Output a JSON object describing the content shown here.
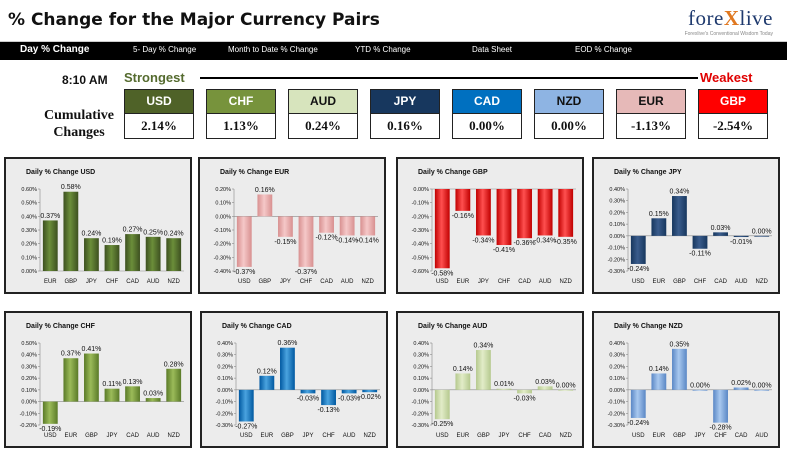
{
  "header": {
    "title": "% Change for the Major Currency Pairs",
    "logo_main": "fore",
    "logo_x": "X",
    "logo_end": "live",
    "logo_tag": "Forexlive's Conventional Wisdom Today"
  },
  "tabs": [
    {
      "label": "Day % Change"
    },
    {
      "label": "5- Day % Change"
    },
    {
      "label": "Month to Date % Change"
    },
    {
      "label": "YTD % Change"
    },
    {
      "label": "Data Sheet"
    },
    {
      "label": "EOD % Change"
    }
  ],
  "summary": {
    "time": "8:10 AM",
    "strongest_label": "Strongest",
    "weakest_label": "Weakest",
    "cumulative_label_1": "Cumulative",
    "cumulative_label_2": "Changes",
    "currencies": [
      {
        "name": "USD",
        "value": "2.14%",
        "color": "#4f6228",
        "text_color": "#ffffff"
      },
      {
        "name": "CHF",
        "value": "1.13%",
        "color": "#77933c",
        "text_color": "#ffffff"
      },
      {
        "name": "AUD",
        "value": "0.24%",
        "color": "#d7e4bd",
        "text_color": "#111111"
      },
      {
        "name": "JPY",
        "value": "0.16%",
        "color": "#17375e",
        "text_color": "#ffffff"
      },
      {
        "name": "CAD",
        "value": "0.00%",
        "color": "#0070c0",
        "text_color": "#ffffff"
      },
      {
        "name": "NZD",
        "value": "0.00%",
        "color": "#8eb4e3",
        "text_color": "#111111"
      },
      {
        "name": "EUR",
        "value": "-1.13%",
        "color": "#e6b9b8",
        "text_color": "#111111"
      },
      {
        "name": "GBP",
        "value": "-2.54%",
        "color": "#ff0000",
        "text_color": "#ffffff"
      }
    ]
  },
  "chart_data": [
    {
      "type": "bar",
      "title": "Daily % Change USD",
      "categories": [
        "EUR",
        "GBP",
        "JPY",
        "CHF",
        "CAD",
        "AUD",
        "NZD"
      ],
      "values": [
        0.37,
        0.58,
        0.24,
        0.19,
        0.27,
        0.25,
        0.24
      ],
      "labels": [
        "0.37%",
        "0.58%",
        "0.24%",
        "0.19%",
        "0.27%",
        "0.25%",
        "0.24%"
      ],
      "ylim": [
        0.0,
        0.6
      ],
      "ticks": [
        0.0,
        0.1,
        0.2,
        0.3,
        0.4,
        0.5,
        0.6
      ],
      "tick_labels": [
        "0.00%",
        "0.10%",
        "0.20%",
        "0.30%",
        "0.40%",
        "0.50%",
        "0.60%"
      ],
      "colors": {
        "light": "#6b8e3a",
        "dark": "#3d5020"
      }
    },
    {
      "type": "bar",
      "title": "Daily % Change EUR",
      "categories": [
        "USD",
        "GBP",
        "JPY",
        "CHF",
        "CAD",
        "AUD",
        "NZD"
      ],
      "values": [
        -0.37,
        0.16,
        -0.15,
        -0.37,
        -0.12,
        -0.14,
        -0.14
      ],
      "labels": [
        "-0.37%",
        "0.16%",
        "-0.15%",
        "-0.37%",
        "-0.12%",
        "-0.14%",
        "-0.14%"
      ],
      "ylim": [
        -0.4,
        0.2
      ],
      "ticks": [
        -0.4,
        -0.3,
        -0.2,
        -0.1,
        0.0,
        0.1,
        0.2
      ],
      "tick_labels": [
        "-0.40%",
        "-0.30%",
        "-0.20%",
        "-0.10%",
        "0.00%",
        "0.10%",
        "0.20%"
      ],
      "colors": {
        "light": "#f5c8c8",
        "dark": "#d89090"
      }
    },
    {
      "type": "bar",
      "title": "Daily % Change GBP",
      "categories": [
        "USD",
        "EUR",
        "JPY",
        "CHF",
        "CAD",
        "AUD",
        "NZD"
      ],
      "values": [
        -0.58,
        -0.16,
        -0.34,
        -0.41,
        -0.36,
        -0.34,
        -0.35
      ],
      "labels": [
        "-0.58%",
        "-0.16%",
        "-0.34%",
        "-0.41%",
        "-0.36%",
        "-0.34%",
        "-0.35%"
      ],
      "ylim": [
        -0.6,
        0.0
      ],
      "ticks": [
        -0.6,
        -0.5,
        -0.4,
        -0.3,
        -0.2,
        -0.1,
        0.0
      ],
      "tick_labels": [
        "-0.60%",
        "-0.50%",
        "-0.40%",
        "-0.30%",
        "-0.20%",
        "-0.10%",
        "0.00%"
      ],
      "colors": {
        "light": "#ff5050",
        "dark": "#c00000"
      }
    },
    {
      "type": "bar",
      "title": "Daily % Change JPY",
      "categories": [
        "USD",
        "EUR",
        "GBP",
        "CHF",
        "CAD",
        "AUD",
        "NZD"
      ],
      "values": [
        -0.24,
        0.15,
        0.34,
        -0.11,
        0.03,
        -0.01,
        0.0
      ],
      "labels": [
        "-0.24%",
        "0.15%",
        "0.34%",
        "-0.11%",
        "0.03%",
        "-0.01%",
        "0.00%"
      ],
      "ylim": [
        -0.3,
        0.4
      ],
      "ticks": [
        -0.3,
        -0.2,
        -0.1,
        0.0,
        0.1,
        0.2,
        0.3,
        0.4
      ],
      "tick_labels": [
        "-0.30%",
        "-0.20%",
        "-0.10%",
        "0.00%",
        "0.10%",
        "0.20%",
        "0.30%",
        "0.40%"
      ],
      "colors": {
        "light": "#3a5c8c",
        "dark": "#17375e"
      }
    },
    {
      "type": "bar",
      "title": "Daily % Change CHF",
      "categories": [
        "USD",
        "EUR",
        "GBP",
        "JPY",
        "CAD",
        "AUD",
        "NZD"
      ],
      "values": [
        -0.19,
        0.37,
        0.41,
        0.11,
        0.13,
        0.03,
        0.28
      ],
      "labels": [
        "-0.19%",
        "0.37%",
        "0.41%",
        "0.11%",
        "0.13%",
        "0.03%",
        "0.28%"
      ],
      "ylim": [
        -0.2,
        0.5
      ],
      "ticks": [
        -0.2,
        -0.1,
        0.0,
        0.1,
        0.2,
        0.3,
        0.4,
        0.5
      ],
      "tick_labels": [
        "-0.20%",
        "-0.10%",
        "0.00%",
        "0.10%",
        "0.20%",
        "0.30%",
        "0.40%",
        "0.50%"
      ],
      "colors": {
        "light": "#9bbb59",
        "dark": "#5a7a28"
      }
    },
    {
      "type": "bar",
      "title": "Daily % Change CAD",
      "categories": [
        "USD",
        "EUR",
        "GBP",
        "JPY",
        "CHF",
        "AUD",
        "NZD"
      ],
      "values": [
        -0.27,
        0.12,
        0.36,
        -0.03,
        -0.13,
        -0.03,
        -0.02
      ],
      "labels": [
        "-0.27%",
        "0.12%",
        "0.36%",
        "-0.03%",
        "-0.13%",
        "-0.03%",
        "-0.02%"
      ],
      "ylim": [
        -0.3,
        0.4
      ],
      "ticks": [
        -0.3,
        -0.2,
        -0.1,
        0.0,
        0.1,
        0.2,
        0.3,
        0.4
      ],
      "tick_labels": [
        "-0.30%",
        "-0.20%",
        "-0.10%",
        "0.00%",
        "0.10%",
        "0.20%",
        "0.30%",
        "0.40%"
      ],
      "colors": {
        "light": "#4aa3df",
        "dark": "#0058a0"
      }
    },
    {
      "type": "bar",
      "title": "Daily % Change AUD",
      "categories": [
        "USD",
        "EUR",
        "GBP",
        "JPY",
        "CHF",
        "CAD",
        "NZD"
      ],
      "values": [
        -0.25,
        0.14,
        0.34,
        0.01,
        -0.03,
        0.03,
        0.0
      ],
      "labels": [
        "-0.25%",
        "0.14%",
        "0.34%",
        "0.01%",
        "-0.03%",
        "0.03%",
        "0.00%"
      ],
      "ylim": [
        -0.3,
        0.4
      ],
      "ticks": [
        -0.3,
        -0.2,
        -0.1,
        0.0,
        0.1,
        0.2,
        0.3,
        0.4
      ],
      "tick_labels": [
        "-0.30%",
        "-0.20%",
        "-0.10%",
        "0.00%",
        "0.10%",
        "0.20%",
        "0.30%",
        "0.40%"
      ],
      "colors": {
        "light": "#e2ecc8",
        "dark": "#b5c98e"
      }
    },
    {
      "type": "bar",
      "title": "Daily % Change NZD",
      "categories": [
        "USD",
        "EUR",
        "GBP",
        "JPY",
        "CHF",
        "CAD",
        "AUD"
      ],
      "values": [
        -0.24,
        0.14,
        0.35,
        0.0,
        -0.28,
        0.02,
        0.0
      ],
      "labels": [
        "-0.24%",
        "0.14%",
        "0.35%",
        "0.00%",
        "-0.28%",
        "0.02%",
        "0.00%"
      ],
      "ylim": [
        -0.3,
        0.4
      ],
      "ticks": [
        -0.3,
        -0.2,
        -0.1,
        0.0,
        0.1,
        0.2,
        0.3,
        0.4
      ],
      "tick_labels": [
        "-0.30%",
        "-0.20%",
        "-0.10%",
        "0.00%",
        "0.10%",
        "0.20%",
        "0.30%",
        "0.40%"
      ],
      "colors": {
        "light": "#a8c8ef",
        "dark": "#5a87c5"
      }
    }
  ]
}
